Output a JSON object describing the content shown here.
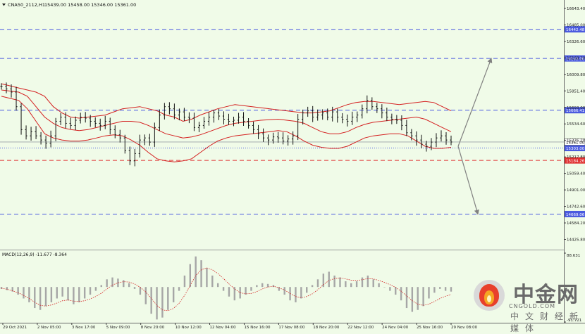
{
  "header": {
    "symbol_label": "CNA50_2112,H1",
    "ohlc_label": "15439.00 15458.00 15346.00 15361.00"
  },
  "chart_data": [
    {
      "type": "line",
      "title": "CNA50_2112,H1",
      "ylim": [
        14328,
        16724
      ],
      "price_ticks": [
        16643.4,
        16485.0,
        16326.6,
        16168.2,
        16009.8,
        15851.4,
        15693.0,
        15534.6,
        15376.2,
        15217.8,
        15059.4,
        14901.0,
        14742.6,
        14584.2,
        14425.8
      ],
      "x_ticks": [
        "29 Oct 2021",
        "2 Nov 05:00",
        "3 Nov 17:00",
        "5 Nov 09:00",
        "8 Nov 20:00",
        "10 Nov 12:00",
        "12 Nov 04:00",
        "15 Nov 16:00",
        "17 Nov 08:00",
        "18 Nov 20:00",
        "22 Nov 12:00",
        "24 Nov 04:00",
        "25 Nov 16:00",
        "29 Nov 08:00"
      ],
      "current_price": 15361.0,
      "levels": [
        {
          "value": 16442.48,
          "label": "16442.48",
          "color": "#4a5adf",
          "style": "dashed"
        },
        {
          "value": 16163.0,
          "label": "16163.00",
          "color": "#4a5adf",
          "style": "dashed"
        },
        {
          "value": 15666.41,
          "label": "15666.41",
          "color": "#4a5adf",
          "style": "dashed"
        },
        {
          "value": 15303.0,
          "label": "15303.00",
          "color": "#4a5adf",
          "style": "dotted"
        },
        {
          "value": 15184.26,
          "label": "15184.26",
          "color": "#e03030",
          "style": "dashed"
        },
        {
          "value": 14669.06,
          "label": "14669.06",
          "color": "#4a5adf",
          "style": "dashed"
        }
      ],
      "price_series": [
        15895,
        15870,
        15840,
        15700,
        15480,
        15420,
        15460,
        15420,
        15380,
        15350,
        15420,
        15560,
        15600,
        15540,
        15520,
        15570,
        15600,
        15590,
        15560,
        15540,
        15520,
        15560,
        15480,
        15430,
        15400,
        15280,
        15180,
        15250,
        15380,
        15400,
        15360,
        15500,
        15620,
        15700,
        15680,
        15620,
        15650,
        15600,
        15590,
        15500,
        15520,
        15560,
        15600,
        15640,
        15610,
        15580,
        15560,
        15570,
        15600,
        15560,
        15520,
        15480,
        15440,
        15400,
        15380,
        15410,
        15400,
        15370,
        15390,
        15420,
        15580,
        15640,
        15660,
        15600,
        15620,
        15640,
        15600,
        15650,
        15600,
        15580,
        15560,
        15600,
        15620,
        15680,
        15760,
        15700,
        15680,
        15640,
        15600,
        15580,
        15570,
        15520,
        15450,
        15420,
        15380,
        15340,
        15320,
        15360,
        15400,
        15420,
        15380,
        15361
      ],
      "bollinger": {
        "upper": [
          15920,
          15900,
          15880,
          15860,
          15840,
          15800,
          15700,
          15640,
          15600,
          15590,
          15600,
          15610,
          15620,
          15650,
          15680,
          15690,
          15700,
          15680,
          15660,
          15620,
          15600,
          15560,
          15580,
          15620,
          15650,
          15680,
          15700,
          15720,
          15710,
          15700,
          15690,
          15680,
          15670,
          15660,
          15650,
          15640,
          15640,
          15650,
          15660,
          15690,
          15720,
          15740,
          15750,
          15750,
          15740,
          15730,
          15720,
          15730,
          15740,
          15750,
          15740,
          15700,
          15660
        ],
        "middle": [
          15860,
          15850,
          15840,
          15800,
          15700,
          15600,
          15540,
          15500,
          15480,
          15470,
          15480,
          15500,
          15520,
          15540,
          15560,
          15560,
          15550,
          15520,
          15480,
          15440,
          15420,
          15400,
          15410,
          15430,
          15460,
          15490,
          15520,
          15540,
          15550,
          15560,
          15570,
          15575,
          15580,
          15570,
          15560,
          15540,
          15500,
          15460,
          15440,
          15440,
          15460,
          15500,
          15530,
          15550,
          15560,
          15570,
          15580,
          15590,
          15600,
          15580,
          15540,
          15500,
          15460
        ],
        "lower": [
          15800,
          15780,
          15760,
          15680,
          15560,
          15440,
          15400,
          15380,
          15370,
          15370,
          15380,
          15400,
          15420,
          15430,
          15420,
          15380,
          15330,
          15260,
          15200,
          15180,
          15170,
          15180,
          15200,
          15260,
          15320,
          15370,
          15400,
          15420,
          15430,
          15440,
          15450,
          15460,
          15470,
          15460,
          15420,
          15370,
          15330,
          15310,
          15300,
          15300,
          15320,
          15360,
          15400,
          15420,
          15430,
          15440,
          15440,
          15420,
          15370,
          15320,
          15300,
          15300,
          15310
        ]
      },
      "forecast": {
        "from": 15320,
        "up_target": 16163.0,
        "down_target": 14669.06
      }
    },
    {
      "type": "bar",
      "title": "MACD(12,26,9) -11.677 -8.364",
      "ylim": [
        -91.721,
        88.631
      ],
      "y_ticks": [
        88.631,
        -91.721
      ],
      "macd_label": "MACD(12,26,9)",
      "main_value": -11.677,
      "signal_value": -8.364,
      "histogram": [
        -5,
        -8,
        -12,
        -20,
        -30,
        -40,
        -55,
        -60,
        -50,
        -40,
        -30,
        -25,
        -35,
        -45,
        -40,
        -30,
        -20,
        -10,
        5,
        20,
        25,
        22,
        18,
        10,
        -5,
        -20,
        -45,
        -70,
        -85,
        -80,
        -60,
        -40,
        -10,
        30,
        60,
        80,
        70,
        50,
        30,
        10,
        -10,
        -25,
        -35,
        -30,
        -20,
        -10,
        5,
        10,
        8,
        5,
        -10,
        -20,
        -35,
        -40,
        -30,
        -15,
        5,
        20,
        35,
        40,
        30,
        25,
        15,
        10,
        15,
        25,
        30,
        20,
        10,
        0,
        -10,
        -20,
        -35,
        -55,
        -65,
        -60,
        -50,
        -30,
        -15,
        -5,
        -10,
        -12
      ],
      "signal": [
        -3,
        -6,
        -10,
        -15,
        -22,
        -30,
        -40,
        -48,
        -50,
        -47,
        -42,
        -36,
        -34,
        -37,
        -38,
        -36,
        -31,
        -25,
        -16,
        -5,
        5,
        11,
        14,
        13,
        8,
        -1,
        -13,
        -30,
        -48,
        -60,
        -62,
        -56,
        -43,
        -22,
        4,
        30,
        45,
        50,
        45,
        35,
        22,
        8,
        -5,
        -15,
        -18,
        -17,
        -12,
        -5,
        0,
        2,
        -2,
        -8,
        -17,
        -25,
        -28,
        -25,
        -18,
        -7,
        6,
        17,
        22,
        24,
        21,
        18,
        17,
        19,
        22,
        21,
        17,
        12,
        6,
        -1,
        -11,
        -23,
        -36,
        -45,
        -48,
        -45,
        -38,
        -30,
        -24,
        -20
      ]
    }
  ],
  "watermark": {
    "brand": "中金网",
    "url": "CNGOLD.COM",
    "subtitle": "中文财经新媒体"
  }
}
